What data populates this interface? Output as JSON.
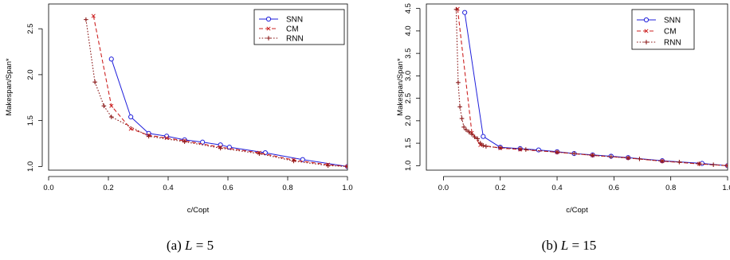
{
  "chart_data": [
    {
      "type": "line",
      "caption": {
        "label": "(a)",
        "variable": "L",
        "op": "=",
        "value": "5"
      },
      "xlabel": "c/Copt",
      "ylabel": "Makespan/Span*",
      "xlim": [
        0.0,
        1.0
      ],
      "ylim": [
        1.0,
        2.5
      ],
      "xticks": [
        "0.0",
        "0.2",
        "0.4",
        "0.6",
        "0.8",
        "1.0"
      ],
      "yticks": [
        "1.0",
        "1.5",
        "2.0",
        "2.5"
      ],
      "legend": "top-right",
      "series": [
        {
          "name": "SNN",
          "color": "#1f1fdb",
          "style": "solid",
          "marker": "circle",
          "x": [
            0.21,
            0.275,
            0.335,
            0.395,
            0.455,
            0.515,
            0.575,
            0.605,
            0.725,
            0.85,
            1.0
          ],
          "y": [
            2.17,
            1.54,
            1.36,
            1.33,
            1.29,
            1.265,
            1.235,
            1.21,
            1.15,
            1.075,
            1.0
          ]
        },
        {
          "name": "CM",
          "color": "#cc2222",
          "style": "dashed",
          "marker": "x",
          "x": [
            0.15,
            0.21,
            0.275,
            0.335,
            0.395,
            0.455,
            0.575,
            0.705,
            0.82,
            0.935,
            1.0
          ],
          "y": [
            2.64,
            1.66,
            1.41,
            1.34,
            1.31,
            1.28,
            1.21,
            1.15,
            1.07,
            1.02,
            1.0
          ]
        },
        {
          "name": "RNN",
          "color": "#8b1a1a",
          "style": "dotted",
          "marker": "plus",
          "x": [
            0.125,
            0.155,
            0.185,
            0.21,
            0.335,
            0.455,
            0.575,
            0.705,
            0.82,
            0.935,
            1.0
          ],
          "y": [
            2.6,
            1.92,
            1.66,
            1.54,
            1.33,
            1.27,
            1.2,
            1.14,
            1.06,
            1.01,
            1.0
          ]
        }
      ]
    },
    {
      "type": "line",
      "caption": {
        "label": "(b)",
        "variable": "L",
        "op": "=",
        "value": "15"
      },
      "xlabel": "c/Copt",
      "ylabel": "Makespan/Span*",
      "xlim": [
        0.0,
        1.0
      ],
      "ylim": [
        1.0,
        4.5
      ],
      "xticks": [
        "0.0",
        "0.2",
        "0.4",
        "0.6",
        "0.8",
        "1.0"
      ],
      "yticks": [
        "1.0",
        "1.5",
        "2.0",
        "2.5",
        "3.0",
        "3.5",
        "4.0",
        "4.5"
      ],
      "legend": "top-right",
      "series": [
        {
          "name": "SNN",
          "color": "#1f1fdb",
          "style": "solid",
          "marker": "circle",
          "x": [
            0.075,
            0.14,
            0.2,
            0.27,
            0.335,
            0.4,
            0.46,
            0.525,
            0.59,
            0.65,
            0.77,
            0.91,
            1.0
          ],
          "y": [
            4.41,
            1.65,
            1.41,
            1.38,
            1.35,
            1.31,
            1.27,
            1.24,
            1.21,
            1.18,
            1.11,
            1.05,
            1.0
          ]
        },
        {
          "name": "CM",
          "color": "#cc2222",
          "style": "dashed",
          "marker": "x",
          "x": [
            0.05,
            0.1,
            0.13,
            0.2,
            0.27,
            0.4,
            0.525,
            0.65,
            0.77,
            0.9,
            1.0
          ],
          "y": [
            4.49,
            1.73,
            1.46,
            1.39,
            1.36,
            1.3,
            1.23,
            1.17,
            1.1,
            1.04,
            1.0
          ]
        },
        {
          "name": "RNN",
          "color": "#8b1a1a",
          "style": "dotted",
          "marker": "plus",
          "x": [
            0.045,
            0.052,
            0.058,
            0.065,
            0.072,
            0.08,
            0.09,
            0.1,
            0.11,
            0.12,
            0.13,
            0.14,
            0.15,
            0.2,
            0.27,
            0.29,
            0.4,
            0.46,
            0.525,
            0.59,
            0.65,
            0.69,
            0.77,
            0.83,
            0.9,
            0.95,
            1.0
          ],
          "y": [
            4.48,
            2.85,
            2.31,
            2.05,
            1.86,
            1.8,
            1.75,
            1.7,
            1.64,
            1.6,
            1.5,
            1.45,
            1.43,
            1.4,
            1.37,
            1.36,
            1.3,
            1.27,
            1.23,
            1.2,
            1.17,
            1.15,
            1.1,
            1.08,
            1.04,
            1.02,
            1.0
          ]
        }
      ]
    }
  ]
}
